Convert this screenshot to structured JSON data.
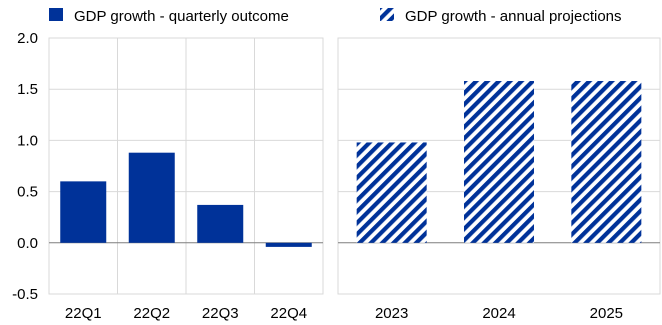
{
  "chart_data": [
    {
      "type": "bar",
      "categories": [
        "22Q1",
        "22Q2",
        "22Q3",
        "22Q4"
      ],
      "series": [
        {
          "name": "GDP growth - quarterly outcome",
          "values": [
            0.6,
            0.88,
            0.37,
            -0.04
          ]
        }
      ],
      "ylim": [
        -0.5,
        2.0
      ],
      "yticks": [
        "2.0",
        "1.5",
        "1.0",
        "0.5",
        "0.0",
        "-0.5"
      ],
      "grid": true,
      "legend": "top-left",
      "color": "#003299"
    },
    {
      "type": "bar",
      "categories": [
        "2023",
        "2024",
        "2025"
      ],
      "series": [
        {
          "name": "GDP growth - annual projections",
          "values": [
            0.98,
            1.58,
            1.58
          ]
        }
      ],
      "ylim": [
        -0.5,
        2.0
      ],
      "grid": true,
      "legend": "top-right",
      "color": "#003299",
      "pattern": "diagonal-hatch"
    }
  ]
}
